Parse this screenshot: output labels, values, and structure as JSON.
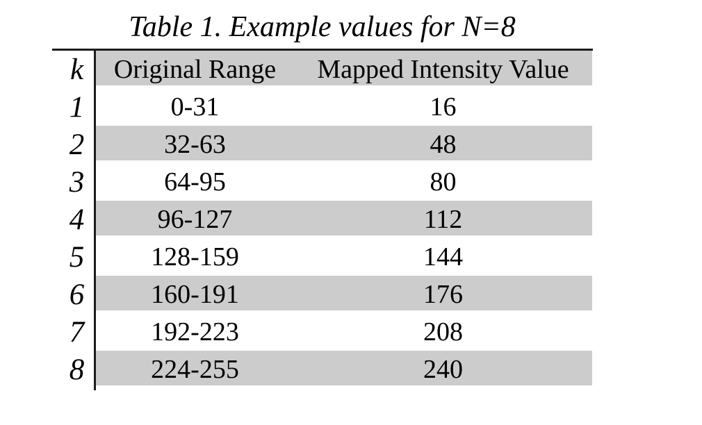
{
  "caption": "Table 1. Example values for N=8",
  "table": {
    "headers": {
      "k": "k",
      "range": "Original Range",
      "value": "Mapped Intensity Value"
    },
    "rows": [
      {
        "k": "1",
        "range": "0-31",
        "value": "16",
        "striped": false
      },
      {
        "k": "2",
        "range": "32-63",
        "value": "48",
        "striped": true
      },
      {
        "k": "3",
        "range": "64-95",
        "value": "80",
        "striped": false
      },
      {
        "k": "4",
        "range": "96-127",
        "value": "112",
        "striped": true
      },
      {
        "k": "5",
        "range": "128-159",
        "value": "144",
        "striped": false
      },
      {
        "k": "6",
        "range": "160-191",
        "value": "176",
        "striped": true
      },
      {
        "k": "7",
        "range": "192-223",
        "value": "208",
        "striped": false
      },
      {
        "k": "8",
        "range": "224-255",
        "value": "240",
        "striped": true
      }
    ]
  },
  "colors": {
    "stripe": "#cccccc",
    "rule": "#1c1c1c",
    "text": "#000000",
    "background": "#ffffff"
  },
  "chart_data": {
    "type": "table",
    "title": "Table 1. Example values for N=8",
    "columns": [
      "k",
      "Original Range",
      "Mapped Intensity Value"
    ],
    "rows_data": [
      [
        "1",
        "0-31",
        16
      ],
      [
        "2",
        "32-63",
        48
      ],
      [
        "3",
        "64-95",
        80
      ],
      [
        "4",
        "96-127",
        112
      ],
      [
        "5",
        "128-159",
        144
      ],
      [
        "6",
        "160-191",
        176
      ],
      [
        "7",
        "192-223",
        208
      ],
      [
        "8",
        "224-255",
        240
      ]
    ]
  }
}
